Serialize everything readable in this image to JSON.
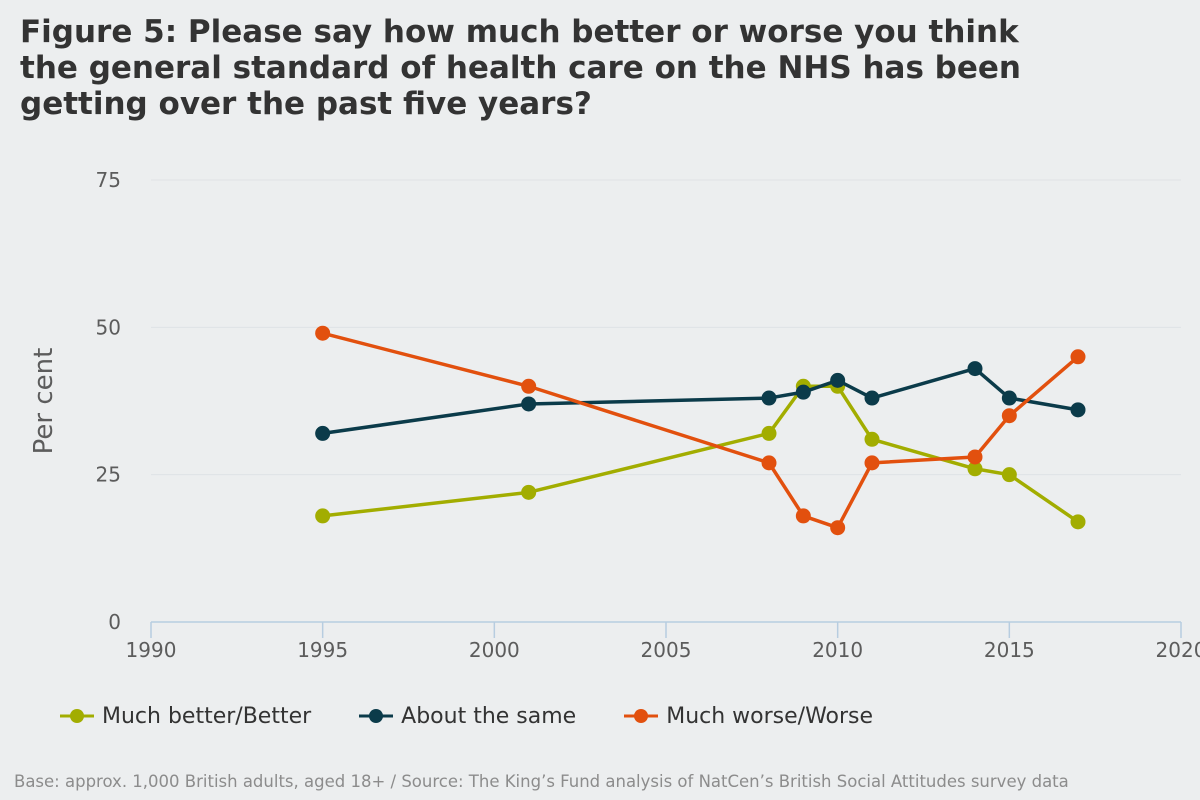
{
  "chart_data": {
    "type": "line",
    "title_lines": [
      "Figure 5: Please say how much better or worse you think",
      "the general standard of health care on the NHS has been",
      "getting over the past five years?"
    ],
    "xlabel": "",
    "ylabel": "Per cent",
    "xlim": [
      1990,
      2020
    ],
    "ylim": [
      0,
      75
    ],
    "x_ticks": [
      1990,
      1995,
      2000,
      2005,
      2010,
      2015,
      2020
    ],
    "y_ticks": [
      0,
      25,
      50,
      75
    ],
    "grid": true,
    "legend_position": "bottom-left",
    "series": [
      {
        "name": "Much better/Better",
        "color": "#a2ad00",
        "x": [
          1995,
          2001,
          2008,
          2009,
          2010,
          2011,
          2014,
          2015,
          2017
        ],
        "values": [
          18,
          22,
          32,
          40,
          40,
          31,
          26,
          25,
          17
        ]
      },
      {
        "name": "About the same",
        "color": "#0b3b4a",
        "x": [
          1995,
          2001,
          2008,
          2009,
          2010,
          2011,
          2014,
          2015,
          2017
        ],
        "values": [
          32,
          37,
          38,
          39,
          41,
          38,
          43,
          38,
          36
        ]
      },
      {
        "name": "Much worse/Worse",
        "color": "#e2500e",
        "x": [
          1995,
          2001,
          2008,
          2009,
          2010,
          2011,
          2014,
          2015,
          2017
        ],
        "values": [
          49,
          40,
          27,
          18,
          16,
          27,
          28,
          35,
          45
        ]
      }
    ]
  },
  "footer": {
    "source": "Base: approx. 1,000 British adults, aged 18+ / Source: The King’s Fund analysis of NatCen’s British Social Attitudes survey data"
  }
}
